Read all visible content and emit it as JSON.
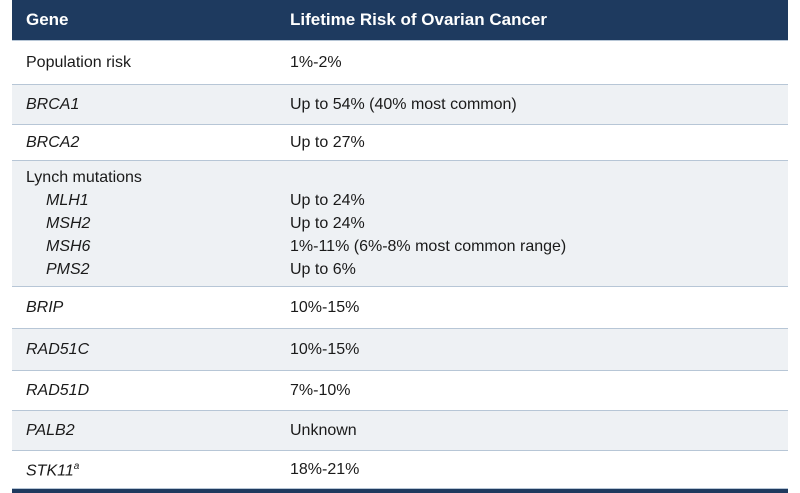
{
  "header": {
    "gene": "Gene",
    "risk": "Lifetime Risk of Ovarian Cancer"
  },
  "rows": [
    {
      "gene": "Population risk",
      "risk": "1%-2%"
    },
    {
      "gene": "BRCA1",
      "risk": "Up to 54% (40% most common)"
    },
    {
      "gene": "BRCA2",
      "risk": "Up to 27%"
    },
    {
      "gene": "Lynch mutations",
      "sub": [
        {
          "gene": "MLH1",
          "risk": "Up to 24%"
        },
        {
          "gene": "MSH2",
          "risk": "Up to 24%"
        },
        {
          "gene": "MSH6",
          "risk": "1%-11% (6%-8% most common range)"
        },
        {
          "gene": "PMS2",
          "risk": "Up to 6%"
        }
      ]
    },
    {
      "gene": "BRIP",
      "risk": "10%-15%"
    },
    {
      "gene": "RAD51C",
      "risk": "10%-15%"
    },
    {
      "gene": "RAD51D",
      "risk": "7%-10%"
    },
    {
      "gene": "PALB2",
      "risk": "Unknown"
    },
    {
      "gene": "STK11",
      "gene_sup": "a",
      "risk": "18%-21%"
    }
  ],
  "colors": {
    "header_bg": "#1e3a5f",
    "row_shade": "#eef1f4",
    "rule": "#b7c6d6"
  }
}
